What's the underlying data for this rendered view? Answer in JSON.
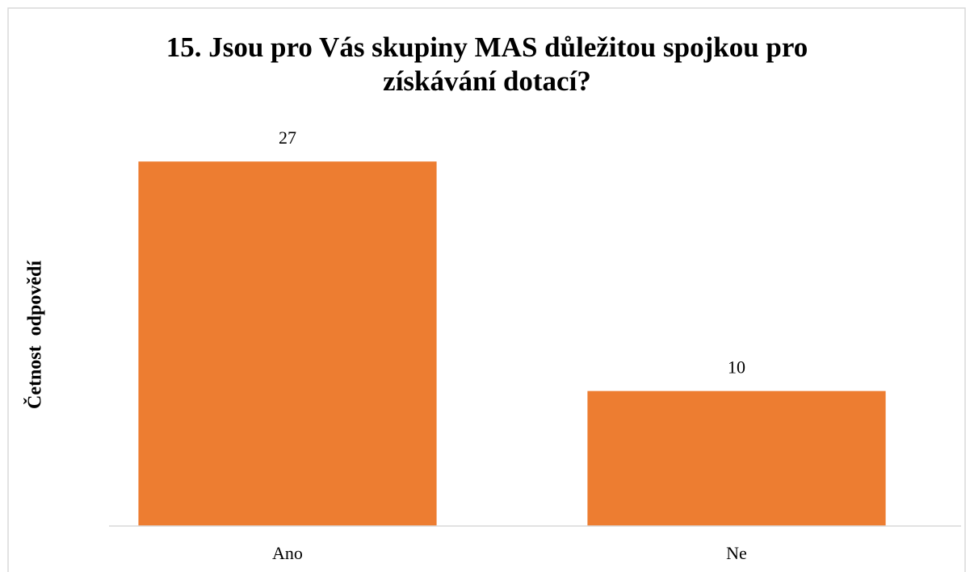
{
  "chart_data": {
    "type": "bar",
    "title": "15. Jsou pro Vás skupiny MAS důležitou spojkou pro získávání dotací?",
    "y_label": "Četnost  odpovědí",
    "categories": [
      "Ano",
      "Ne"
    ],
    "values": [
      27,
      10
    ],
    "color": "#ed7d31",
    "ylim": [
      0,
      30
    ],
    "data_labels": true
  }
}
